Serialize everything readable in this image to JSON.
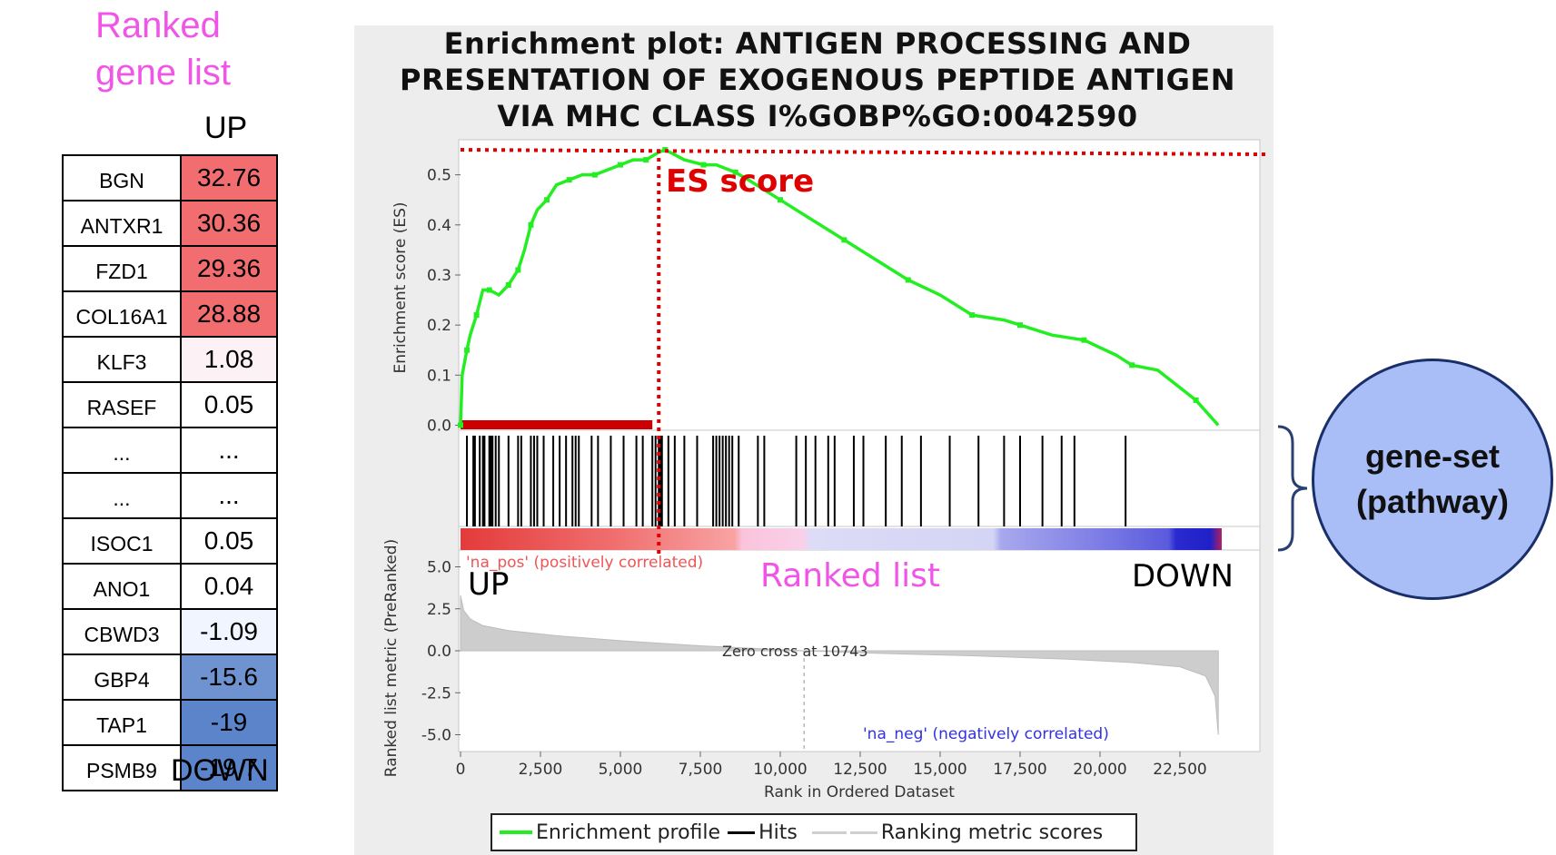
{
  "ranked_list": {
    "title": "Ranked\ngene list",
    "up_label": "UP",
    "down_label": "DOWN",
    "rows": [
      {
        "gene": "BGN",
        "value": "32.76",
        "color": "#f26d6f"
      },
      {
        "gene": "ANTXR1",
        "value": "30.36",
        "color": "#f26d6f"
      },
      {
        "gene": "FZD1",
        "value": "29.36",
        "color": "#f26d6f"
      },
      {
        "gene": "COL16A1",
        "value": "28.88",
        "color": "#f26d6f"
      },
      {
        "gene": "KLF3",
        "value": "1.08",
        "color": "#fcf2f6"
      },
      {
        "gene": "RASEF",
        "value": "0.05",
        "color": "#ffffff"
      },
      {
        "gene": "...",
        "value": "...",
        "color": "#ffffff"
      },
      {
        "gene": "...",
        "value": "...",
        "color": "#ffffff"
      },
      {
        "gene": "ISOC1",
        "value": "0.05",
        "color": "#ffffff"
      },
      {
        "gene": "ANO1",
        "value": "0.04",
        "color": "#ffffff"
      },
      {
        "gene": "CBWD3",
        "value": "-1.09",
        "color": "#f0f5ff"
      },
      {
        "gene": "GBP4",
        "value": "-15.6",
        "color": "#6f93d0"
      },
      {
        "gene": "TAP1",
        "value": "-19",
        "color": "#5b84cb"
      },
      {
        "gene": "PSMB9",
        "value": "-19.7",
        "color": "#5b84cb"
      }
    ]
  },
  "plot": {
    "title": "Enrichment plot: ANTIGEN PROCESSING AND\nPRESENTATION OF EXOGENOUS PEPTIDE ANTIGEN\nVIA MHC CLASS I%GOBP%GO:0042590",
    "es_annotation": "ES score",
    "pos_label": "'na_pos' (positively correlated)",
    "neg_label": "'na_neg' (negatively correlated)",
    "zero_cross": "Zero cross at 10743",
    "ranked_list_label": "Ranked list",
    "up_label": "UP",
    "down_label": "DOWN",
    "legend": {
      "profile": "Enrichment profile",
      "hits": "Hits",
      "metric": "Ranking metric scores"
    },
    "colors": {
      "profile": "#22ee22",
      "annotation": "#e00000",
      "pink_text": "#f055e8",
      "pos_text": "#f05555",
      "neg_text": "#3333dd"
    }
  },
  "chart_data": {
    "type": "line",
    "title": "Enrichment plot: ANTIGEN PROCESSING AND PRESENTATION OF EXOGENOUS PEPTIDE ANTIGEN VIA MHC CLASS I%GOBP%GO:0042590",
    "xlabel": "Rank in Ordered Dataset",
    "x_ticks": [
      "0",
      "2,500",
      "5,000",
      "7,500",
      "10,000",
      "12,500",
      "15,000",
      "17,500",
      "20,000",
      "22,500"
    ],
    "xlim": [
      0,
      25000
    ],
    "es_panel": {
      "ylabel": "Enrichment score (ES)",
      "y_ticks": [
        "0.0",
        "0.1",
        "0.2",
        "0.3",
        "0.4",
        "0.5"
      ],
      "ylim": [
        -0.01,
        0.57
      ],
      "series": [
        {
          "name": "Enrichment profile",
          "x": [
            0,
            50,
            200,
            300,
            500,
            700,
            900,
            1200,
            1500,
            1700,
            1800,
            2000,
            2200,
            2400,
            2700,
            3000,
            3400,
            3800,
            4200,
            4600,
            5000,
            5400,
            5800,
            6200,
            6400,
            7000,
            7600,
            8000,
            8600,
            9000,
            10000,
            11000,
            12000,
            13000,
            14000,
            15000,
            16000,
            17000,
            17500,
            18500,
            19500,
            20500,
            21000,
            21800,
            23000,
            23700
          ],
          "y": [
            0.0,
            0.1,
            0.15,
            0.18,
            0.22,
            0.27,
            0.27,
            0.26,
            0.28,
            0.3,
            0.31,
            0.35,
            0.4,
            0.43,
            0.45,
            0.48,
            0.49,
            0.5,
            0.5,
            0.51,
            0.52,
            0.53,
            0.53,
            0.545,
            0.55,
            0.53,
            0.52,
            0.52,
            0.505,
            0.49,
            0.45,
            0.41,
            0.37,
            0.33,
            0.29,
            0.26,
            0.22,
            0.21,
            0.2,
            0.18,
            0.17,
            0.14,
            0.12,
            0.11,
            0.05,
            0.0
          ]
        }
      ],
      "peak_rank": 6200,
      "peak_es": 0.55
    },
    "hits_ranks": [
      200,
      400,
      450,
      600,
      700,
      750,
      900,
      950,
      1000,
      1100,
      1200,
      1500,
      1800,
      1900,
      2200,
      2300,
      2400,
      2600,
      2900,
      3100,
      3300,
      3500,
      3600,
      3700,
      4100,
      4300,
      4700,
      5100,
      5500,
      5700,
      6000,
      6100,
      6200,
      6250,
      6300,
      6500,
      6700,
      7000,
      7400,
      7900,
      8000,
      8100,
      8200,
      8300,
      8400,
      8500,
      8700,
      9300,
      9500,
      10500,
      10800,
      11100,
      11500,
      11700,
      12300,
      12600,
      13300,
      13800,
      14400,
      15300,
      16200,
      17000,
      17500,
      18200,
      18800,
      19200,
      20800
    ],
    "leading_edge": [
      0,
      6000
    ],
    "metric_panel": {
      "ylabel": "Ranked list metric (PreRanked)",
      "y_ticks": [
        "5.0",
        "2.5",
        "0.0",
        "-2.5",
        "-5.0"
      ],
      "ylim": [
        -6.0,
        6.0
      ],
      "zero_cross_rank": 10743,
      "x": [
        0,
        100,
        300,
        700,
        1500,
        3000,
        5000,
        7500,
        10743,
        13000,
        16000,
        19000,
        21000,
        22500,
        23300,
        23600,
        23700
      ],
      "y": [
        3.3,
        2.4,
        1.9,
        1.5,
        1.2,
        0.9,
        0.6,
        0.3,
        0.0,
        -0.15,
        -0.3,
        -0.5,
        -0.7,
        -0.95,
        -1.5,
        -2.7,
        -5.0
      ]
    }
  },
  "annotation": {
    "geneset_label": "gene-set\n(pathway)"
  }
}
